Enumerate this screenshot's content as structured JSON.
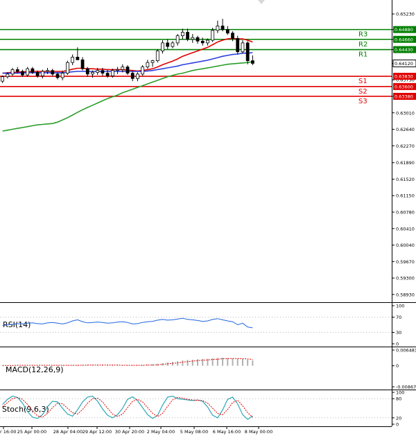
{
  "chart_data": {
    "type": "candlestick",
    "price_axis_ticks": [
      "0.65230",
      "0.64880",
      "0.64660",
      "0.64430",
      "0.64120",
      "0.63750",
      "0.63380",
      "0.63010",
      "0.62640",
      "0.62270",
      "0.61890",
      "0.61520",
      "0.61150",
      "0.60780",
      "0.60410",
      "0.60040",
      "0.59670",
      "0.59300",
      "0.58930"
    ],
    "ylim": [
      0.5885,
      0.6545
    ],
    "x_ticks": [
      "r 16:00",
      "25 Apr 00:00",
      "28 Apr 04:00",
      "29 Apr 12:00",
      "30 Apr 20:00",
      "2 May 04:00",
      "5 May 08:00",
      "6 May 16:00",
      "8 May 00:00"
    ],
    "current_price": "0.64120",
    "levels": [
      {
        "name": "R3",
        "value": 0.6488,
        "label": "0.64880",
        "color": "#008000"
      },
      {
        "name": "R2",
        "value": 0.6466,
        "label": "0.64660",
        "color": "#008000"
      },
      {
        "name": "R1",
        "value": 0.6443,
        "label": "0.64430",
        "color": "#008000"
      },
      {
        "name": "S1",
        "value": 0.6383,
        "label": "0.63830",
        "color": "#e00000"
      },
      {
        "name": "S2",
        "value": 0.636,
        "label": "0.63600",
        "color": "#e00000"
      },
      {
        "name": "S3",
        "value": 0.6338,
        "label": "0.63380",
        "color": "#e00000"
      }
    ],
    "candles": [
      [
        0.6372,
        0.6385,
        0.6368,
        0.6382
      ],
      [
        0.6382,
        0.6392,
        0.6378,
        0.6388
      ],
      [
        0.6388,
        0.6402,
        0.6384,
        0.6398
      ],
      [
        0.6398,
        0.6404,
        0.639,
        0.6394
      ],
      [
        0.6394,
        0.6398,
        0.6382,
        0.6386
      ],
      [
        0.6386,
        0.6404,
        0.6382,
        0.64
      ],
      [
        0.64,
        0.6404,
        0.6388,
        0.6392
      ],
      [
        0.6392,
        0.6396,
        0.638,
        0.6384
      ],
      [
        0.6384,
        0.6398,
        0.6378,
        0.6394
      ],
      [
        0.6394,
        0.6402,
        0.6388,
        0.6396
      ],
      [
        0.6396,
        0.64,
        0.6384,
        0.6388
      ],
      [
        0.6388,
        0.6392,
        0.6376,
        0.638
      ],
      [
        0.638,
        0.6395,
        0.6374,
        0.639
      ],
      [
        0.639,
        0.6418,
        0.6386,
        0.6414
      ],
      [
        0.6414,
        0.6432,
        0.6408,
        0.6426
      ],
      [
        0.6426,
        0.6448,
        0.642,
        0.642
      ],
      [
        0.642,
        0.6426,
        0.6396,
        0.64
      ],
      [
        0.64,
        0.6404,
        0.6382,
        0.6388
      ],
      [
        0.6388,
        0.6396,
        0.638,
        0.6392
      ],
      [
        0.6392,
        0.6402,
        0.6386,
        0.6396
      ],
      [
        0.6396,
        0.6402,
        0.6384,
        0.639
      ],
      [
        0.639,
        0.6398,
        0.638,
        0.6384
      ],
      [
        0.6384,
        0.64,
        0.638,
        0.6396
      ],
      [
        0.6396,
        0.6404,
        0.6388,
        0.6398
      ],
      [
        0.6398,
        0.641,
        0.6392,
        0.6404
      ],
      [
        0.6404,
        0.6408,
        0.6386,
        0.639
      ],
      [
        0.639,
        0.6394,
        0.6372,
        0.6378
      ],
      [
        0.6378,
        0.6392,
        0.6372,
        0.6388
      ],
      [
        0.6388,
        0.6408,
        0.6384,
        0.6404
      ],
      [
        0.6404,
        0.642,
        0.64,
        0.6414
      ],
      [
        0.6414,
        0.642,
        0.6404,
        0.6418
      ],
      [
        0.6418,
        0.6444,
        0.6414,
        0.644
      ],
      [
        0.644,
        0.6464,
        0.6434,
        0.6458
      ],
      [
        0.6458,
        0.6466,
        0.6444,
        0.645
      ],
      [
        0.645,
        0.6462,
        0.6446,
        0.6458
      ],
      [
        0.6458,
        0.6478,
        0.6452,
        0.6474
      ],
      [
        0.6474,
        0.649,
        0.6466,
        0.6482
      ],
      [
        0.6482,
        0.649,
        0.6462,
        0.6466
      ],
      [
        0.6466,
        0.6478,
        0.6458,
        0.647
      ],
      [
        0.647,
        0.6474,
        0.6456,
        0.6462
      ],
      [
        0.6462,
        0.647,
        0.6452,
        0.6458
      ],
      [
        0.6458,
        0.6468,
        0.6452,
        0.6464
      ],
      [
        0.6464,
        0.6492,
        0.646,
        0.6486
      ],
      [
        0.6486,
        0.6508,
        0.648,
        0.6496
      ],
      [
        0.6496,
        0.6512,
        0.6484,
        0.6488
      ],
      [
        0.6488,
        0.6496,
        0.6476,
        0.648
      ],
      [
        0.648,
        0.6484,
        0.6462,
        0.6468
      ],
      [
        0.6468,
        0.6474,
        0.6432,
        0.6438
      ],
      [
        0.6438,
        0.6464,
        0.6434,
        0.6458
      ],
      [
        0.6458,
        0.6462,
        0.641,
        0.6418
      ],
      [
        0.6418,
        0.643,
        0.6408,
        0.6412
      ]
    ],
    "ma_series": [
      {
        "color": "#e00000",
        "values": [
          0.639,
          0.6391,
          0.6392,
          0.6392,
          0.6393,
          0.6393,
          0.6394,
          0.6394,
          0.6394,
          0.6394,
          0.6394,
          0.6394,
          0.6394,
          0.6396,
          0.6399,
          0.6401,
          0.6401,
          0.64,
          0.64,
          0.6399,
          0.6399,
          0.6398,
          0.6398,
          0.6398,
          0.6398,
          0.6397,
          0.6396,
          0.6395,
          0.6396,
          0.6398,
          0.64,
          0.6404,
          0.6409,
          0.6413,
          0.6417,
          0.6422,
          0.6428,
          0.6432,
          0.6436,
          0.644,
          0.6444,
          0.6448,
          0.6454,
          0.646,
          0.6464,
          0.6467,
          0.6468,
          0.6467,
          0.6467,
          0.6464,
          0.646
        ]
      },
      {
        "color": "#2a3ee0",
        "values": [
          0.639,
          0.639,
          0.639,
          0.639,
          0.6391,
          0.6391,
          0.6391,
          0.6391,
          0.6391,
          0.6391,
          0.6391,
          0.6391,
          0.6391,
          0.6392,
          0.6393,
          0.6394,
          0.6394,
          0.6394,
          0.6394,
          0.6394,
          0.6394,
          0.6394,
          0.6394,
          0.6394,
          0.6394,
          0.6394,
          0.6394,
          0.6394,
          0.6394,
          0.6395,
          0.6396,
          0.6398,
          0.64,
          0.6402,
          0.6404,
          0.6406,
          0.6409,
          0.6411,
          0.6413,
          0.6415,
          0.6417,
          0.6419,
          0.6422,
          0.6425,
          0.6428,
          0.643,
          0.6432,
          0.6433,
          0.6435,
          0.6435,
          0.6436
        ]
      },
      {
        "color": "#2a9d2a",
        "values": [
          0.626,
          0.6262,
          0.6264,
          0.6266,
          0.6268,
          0.627,
          0.6272,
          0.6274,
          0.6275,
          0.6276,
          0.6277,
          0.628,
          0.6285,
          0.629,
          0.6296,
          0.6302,
          0.6308,
          0.6313,
          0.6318,
          0.6323,
          0.6328,
          0.6333,
          0.6337,
          0.6341,
          0.6346,
          0.635,
          0.6354,
          0.6358,
          0.6362,
          0.6366,
          0.637,
          0.6374,
          0.6378,
          0.6382,
          0.6385,
          0.6388,
          0.639,
          0.6393,
          0.6396,
          0.6398,
          0.64,
          0.6402,
          0.6404,
          0.6406,
          0.6408,
          0.641,
          0.6411,
          0.6412,
          0.6413,
          0.6414,
          0.6416
        ]
      }
    ],
    "rsi": {
      "title": "RSI(14)",
      "ticks": [
        "100",
        "70",
        "30",
        "0"
      ],
      "tick_values": [
        100,
        70,
        30,
        0
      ],
      "color": "#1e64e0",
      "values": [
        48,
        50,
        51,
        53,
        52,
        54,
        55,
        53,
        52,
        55,
        56,
        54,
        52,
        55,
        60,
        63,
        58,
        55,
        56,
        57,
        56,
        54,
        55,
        57,
        58,
        56,
        52,
        53,
        56,
        58,
        59,
        62,
        64,
        62,
        63,
        65,
        67,
        64,
        63,
        61,
        59,
        60,
        64,
        66,
        63,
        60,
        58,
        50,
        54,
        44,
        42
      ]
    },
    "macd": {
      "title": "MACD(12,26,9)",
      "ticks": [
        "0.006481",
        "0",
        "-0.008677"
      ],
      "tick_values": [
        0.006481,
        0,
        -0.008677
      ],
      "signal_color": "#e00000",
      "hist_color": "#b0b0b0",
      "histogram": [
        0.0001,
        0.0001,
        0.0002,
        0.0002,
        0.0002,
        0.0002,
        0.0002,
        0.0002,
        0.0002,
        0.0002,
        0.0002,
        0.0002,
        0.0002,
        0.0002,
        0.0002,
        0.0003,
        0.0003,
        0.0003,
        0.0003,
        0.0003,
        0.0003,
        0.0003,
        0.0002,
        0.0002,
        0.0002,
        0.0002,
        0.0002,
        0.0002,
        0.0003,
        0.0004,
        0.0006,
        0.0008,
        0.0011,
        0.0014,
        0.0016,
        0.0019,
        0.0022,
        0.0024,
        0.0025,
        0.0027,
        0.0028,
        0.0029,
        0.0031,
        0.0032,
        0.0033,
        0.0032,
        0.0031,
        0.0029,
        0.0028,
        0.0025,
        0.0022
      ],
      "signal": [
        0.0001,
        0.0001,
        0.0001,
        0.0002,
        0.0002,
        0.0002,
        0.0002,
        0.0002,
        0.0002,
        0.0002,
        0.0002,
        0.0002,
        0.0002,
        0.0002,
        0.0002,
        0.0002,
        0.0002,
        0.0003,
        0.0003,
        0.0003,
        0.0003,
        0.0003,
        0.0003,
        0.0003,
        0.0002,
        0.0002,
        0.0002,
        0.0002,
        0.0002,
        0.0003,
        0.0003,
        0.0004,
        0.0006,
        0.0008,
        0.001,
        0.0012,
        0.0015,
        0.0017,
        0.0019,
        0.0021,
        0.0023,
        0.0024,
        0.0026,
        0.0027,
        0.0029,
        0.003,
        0.003,
        0.003,
        0.0029,
        0.0028,
        0.0026
      ]
    },
    "stoch": {
      "title": "Stoch(9,6,3)",
      "ticks": [
        "100",
        "80",
        "20",
        "0"
      ],
      "tick_values": [
        100,
        80,
        20,
        0
      ],
      "k_color": "#1aa0b0",
      "d_color": "#e00000",
      "k": [
        62,
        78,
        88,
        84,
        66,
        40,
        22,
        18,
        30,
        55,
        72,
        70,
        50,
        32,
        25,
        45,
        70,
        85,
        88,
        72,
        48,
        28,
        20,
        30,
        50,
        78,
        86,
        74,
        52,
        30,
        18,
        28,
        60,
        85,
        88,
        80,
        78,
        76,
        74,
        76,
        72,
        54,
        28,
        20,
        45,
        78,
        85,
        64,
        30,
        15,
        26
      ],
      "d": [
        55,
        68,
        80,
        84,
        78,
        62,
        42,
        26,
        22,
        34,
        52,
        66,
        64,
        50,
        36,
        32,
        46,
        66,
        80,
        82,
        70,
        50,
        32,
        24,
        32,
        52,
        72,
        78,
        70,
        52,
        34,
        24,
        34,
        56,
        76,
        84,
        82,
        78,
        76,
        75,
        74,
        66,
        50,
        34,
        30,
        46,
        68,
        75,
        58,
        36,
        22
      ]
    }
  }
}
